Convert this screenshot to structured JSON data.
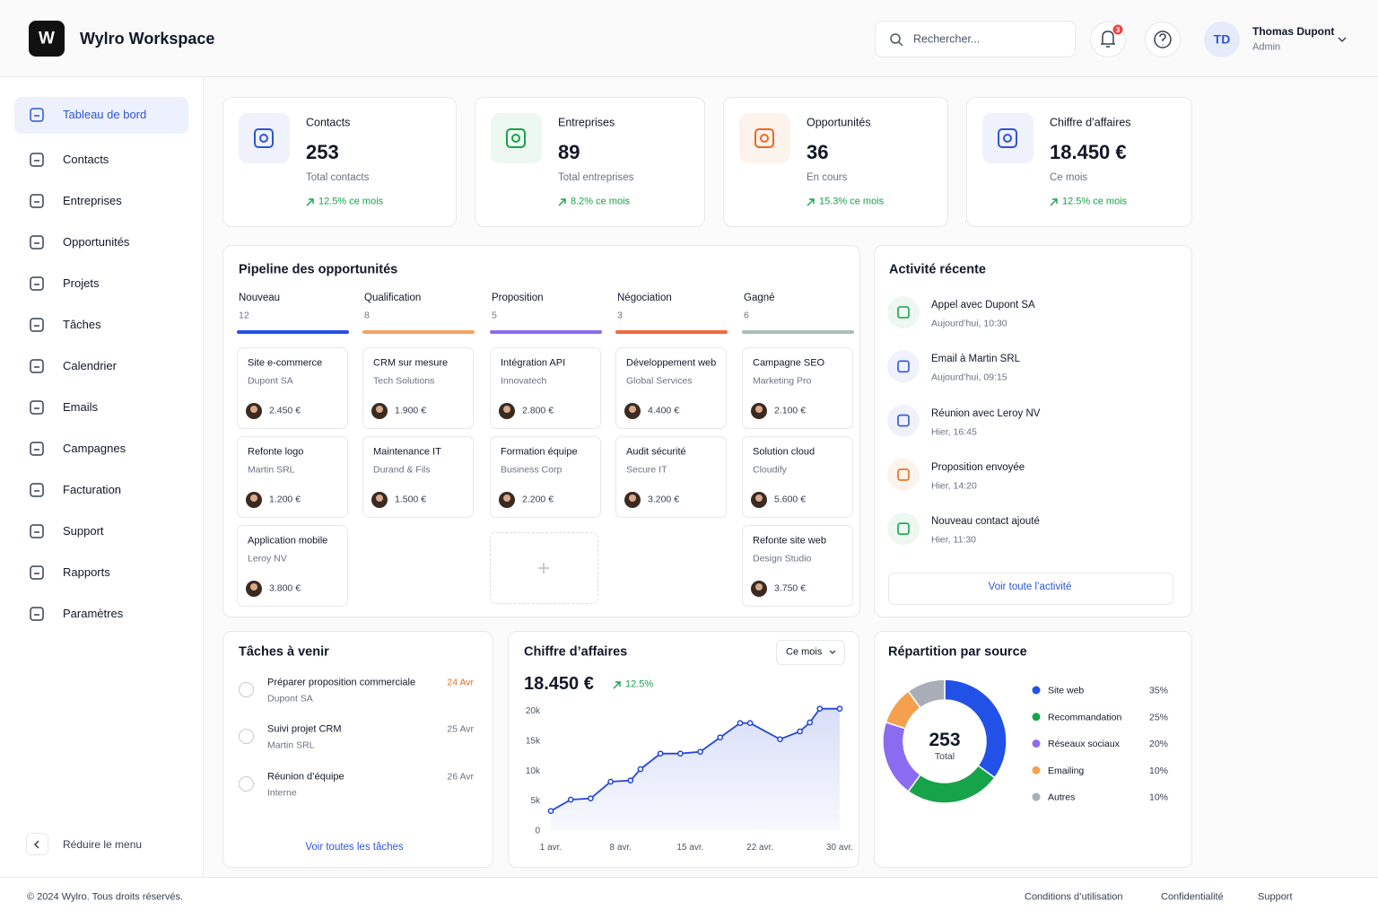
{
  "header": {
    "logo": "W",
    "title": "Wylro Workspace",
    "search_placeholder": "Rechercher...",
    "notifications": "3",
    "user": {
      "initials": "TD",
      "name": "Thomas Dupont",
      "role": "Admin"
    }
  },
  "sidebar": {
    "active": 0,
    "items": [
      "Tableau de bord",
      "Contacts",
      "Entreprises",
      "Opportunités",
      "Projets",
      "Tâches",
      "Calendrier",
      "Emails",
      "Campagnes",
      "Facturation",
      "Support",
      "Rapports",
      "Paramètres"
    ],
    "collapse": "Réduire le menu"
  },
  "stats": [
    {
      "label": "Contacts",
      "value": "253",
      "caption": "Total contacts",
      "trend": "12.5% ce mois",
      "color": "#2f55d4"
    },
    {
      "label": "Entreprises",
      "value": "89",
      "caption": "Total entreprises",
      "trend": "8.2% ce mois",
      "color": "#16a34a"
    },
    {
      "label": "Opportunités",
      "value": "36",
      "caption": "En cours",
      "trend": "15.3% ce mois",
      "color": "#ea6a1f"
    },
    {
      "label": "Chiffre d’affaires",
      "value": "18.450 €",
      "caption": "Ce mois",
      "trend": "12.5% ce mois",
      "color": "#2f55d4"
    }
  ],
  "pipeline": {
    "title": "Pipeline des opportunités",
    "stages": [
      {
        "name": "Nouveau",
        "count": "12",
        "color": "#2251e8",
        "deals": [
          {
            "title": "Site e-commerce",
            "company": "Dupont SA",
            "amount": "2.450 €"
          },
          {
            "title": "Refonte logo",
            "company": "Martin SRL",
            "amount": "1.200 €"
          },
          {
            "title": "Application mobile",
            "company": "Leroy NV",
            "amount": "3.800 €"
          }
        ]
      },
      {
        "name": "Qualification",
        "count": "8",
        "color": "#f5a25d",
        "deals": [
          {
            "title": "CRM sur mesure",
            "company": "Tech Solutions",
            "amount": "1.900 €"
          },
          {
            "title": "Maintenance IT",
            "company": "Durand & Fils",
            "amount": "1.500 €"
          }
        ]
      },
      {
        "name": "Proposition",
        "count": "5",
        "color": "#8b6cf0",
        "deals": [
          {
            "title": "Intégration API",
            "company": "Innovatech",
            "amount": "2.800 €"
          },
          {
            "title": "Formation équipe",
            "company": "Business Corp",
            "amount": "2.200 €"
          }
        ]
      },
      {
        "name": "Négociation",
        "count": "3",
        "color": "#ef6a3a",
        "deals": [
          {
            "title": "Développement web",
            "company": "Global Services",
            "amount": "4.400 €"
          },
          {
            "title": "Audit sécurité",
            "company": "Secure IT",
            "amount": "3.200 €"
          }
        ]
      },
      {
        "name": "Gagné",
        "count": "6",
        "color": "#a9bdb5",
        "deals": [
          {
            "title": "Campagne SEO",
            "company": "Marketing Pro",
            "amount": "2.100 €"
          },
          {
            "title": "Solution cloud",
            "company": "Cloudify",
            "amount": "5.600 €"
          },
          {
            "title": "Refonte site web",
            "company": "Design Studio",
            "amount": "3.750 €"
          }
        ]
      }
    ]
  },
  "activity": {
    "title": "Activité récente",
    "items": [
      {
        "title": "Appel avec Dupont SA",
        "time": "Aujourd’hui, 10:30",
        "color": "#16a34a"
      },
      {
        "title": "Email à Martin SRL",
        "time": "Aujourd’hui, 09:15",
        "color": "#2f55d4"
      },
      {
        "title": "Réunion avec Leroy NV",
        "time": "Hier, 16:45",
        "color": "#2f55d4"
      },
      {
        "title": "Proposition envoyée",
        "time": "Hier, 14:20",
        "color": "#ea6a1f"
      },
      {
        "title": "Nouveau contact ajouté",
        "time": "Hier, 11:30",
        "color": "#16a34a"
      }
    ],
    "link": "Voir toute l’activité"
  },
  "tasks": {
    "title": "Tâches à venir",
    "items": [
      {
        "title": "Préparer proposition commerciale",
        "subtitle": "Dupont SA",
        "date": "24 Avr",
        "date_color": "#ea6a1f"
      },
      {
        "title": "Suivi projet CRM",
        "subtitle": "Martin SRL",
        "date": "25 Avr",
        "date_color": "#6b7280"
      },
      {
        "title": "Réunion d’équipe",
        "subtitle": "Interne",
        "date": "26 Avr",
        "date_color": "#6b7280"
      }
    ],
    "link": "Voir toutes les tâches"
  },
  "chart_data": [
    {
      "type": "line",
      "title": "Chiffre d’affaires",
      "period": "Ce mois",
      "total": "18.450 €",
      "change": "12.5%",
      "color": "#2446d8",
      "x": [
        1,
        3,
        5,
        7,
        9,
        10,
        12,
        14,
        16,
        18,
        20,
        21,
        24,
        26,
        27,
        28,
        30
      ],
      "values": [
        3200,
        5100,
        5300,
        8100,
        8300,
        10200,
        12800,
        12800,
        13100,
        15500,
        17900,
        17900,
        15200,
        16500,
        18000,
        20300,
        20300
      ],
      "xlim": [
        1,
        30
      ],
      "xticks": [
        {
          "value": 1,
          "label": "1 avr."
        },
        {
          "value": 8,
          "label": "8 avr."
        },
        {
          "value": 15,
          "label": "15 avr."
        },
        {
          "value": 22,
          "label": "22 avr."
        },
        {
          "value": 30,
          "label": "30 avr."
        }
      ],
      "ylim": [
        0,
        21000
      ],
      "yticks": [
        0,
        {
          "value": 5000,
          "label": "5k"
        },
        {
          "value": 10000,
          "label": "10k"
        },
        {
          "value": 15000,
          "label": "15k"
        },
        {
          "value": 20000,
          "label": "20k"
        }
      ],
      "grid": false
    },
    {
      "type": "pie",
      "title": "Répartition par source",
      "center_value": "253",
      "center_label": "Total",
      "categories": [
        "Site web",
        "Recommandation",
        "Réseaux sociaux",
        "Emailing",
        "Autres"
      ],
      "values": [
        35,
        25,
        20,
        10,
        10
      ],
      "value_labels": [
        "35%",
        "25%",
        "20%",
        "10%",
        "10%"
      ],
      "colors": [
        "#2251e8",
        "#16a34a",
        "#8b6cf0",
        "#f5a04f",
        "#a9adb8"
      ]
    }
  ],
  "footer": {
    "copyright": "© 2024 Wylro. Tous droits réservés.",
    "links": [
      "Conditions d’utilisation",
      "Confidentialité",
      "Support"
    ]
  }
}
